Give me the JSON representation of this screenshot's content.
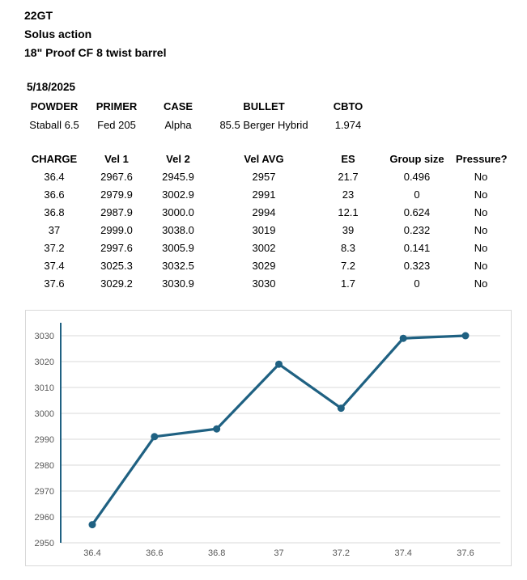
{
  "header": {
    "lines": [
      "22GT",
      "Solus action",
      "18\" Proof CF 8 twist barrel"
    ]
  },
  "session": {
    "date": "5/18/2025",
    "load_table": {
      "headers": [
        "POWDER",
        "PRIMER",
        "CASE",
        "BULLET",
        "CBTO"
      ],
      "values": [
        "Staball 6.5",
        "Fed 205",
        "Alpha",
        "85.5 Berger Hybrid",
        "1.974"
      ]
    },
    "results_table": {
      "headers": [
        "CHARGE",
        "Vel 1",
        "Vel 2",
        "Vel AVG",
        "ES",
        "Group size",
        "Pressure?"
      ],
      "rows": [
        [
          "36.4",
          "2967.6",
          "2945.9",
          "2957",
          "21.7",
          "0.496",
          "No"
        ],
        [
          "36.6",
          "2979.9",
          "3002.9",
          "2991",
          "23",
          "0",
          "No"
        ],
        [
          "36.8",
          "2987.9",
          "3000.0",
          "2994",
          "12.1",
          "0.624",
          "No"
        ],
        [
          "37",
          "2999.0",
          "3038.0",
          "3019",
          "39",
          "0.232",
          "No"
        ],
        [
          "37.2",
          "2997.6",
          "3005.9",
          "3002",
          "8.3",
          "0.141",
          "No"
        ],
        [
          "37.4",
          "3025.3",
          "3032.5",
          "3029",
          "7.2",
          "0.323",
          "No"
        ],
        [
          "37.6",
          "3029.2",
          "3030.9",
          "3030",
          "1.7",
          "0",
          "No"
        ]
      ]
    }
  },
  "chart_data": {
    "type": "line",
    "title": "",
    "xlabel": "",
    "ylabel": "",
    "x_labels": [
      "36.4",
      "36.6",
      "36.8",
      "37",
      "37.2",
      "37.4",
      "37.6"
    ],
    "series": [
      {
        "name": "Vel AVG",
        "values": [
          2957,
          2991,
          2994,
          3019,
          3002,
          3029,
          3030
        ]
      }
    ],
    "ylim": [
      2950,
      3035
    ],
    "yticks": [
      2950,
      2960,
      2970,
      2980,
      2990,
      3000,
      3010,
      3020,
      3030
    ],
    "grid": true,
    "legend": false,
    "line_color": "#1f6182",
    "axis_color": "#1f6182",
    "grid_color": "#d9d9d9",
    "tick_label_color": "#595959",
    "border_color": "#d9d9d9"
  }
}
